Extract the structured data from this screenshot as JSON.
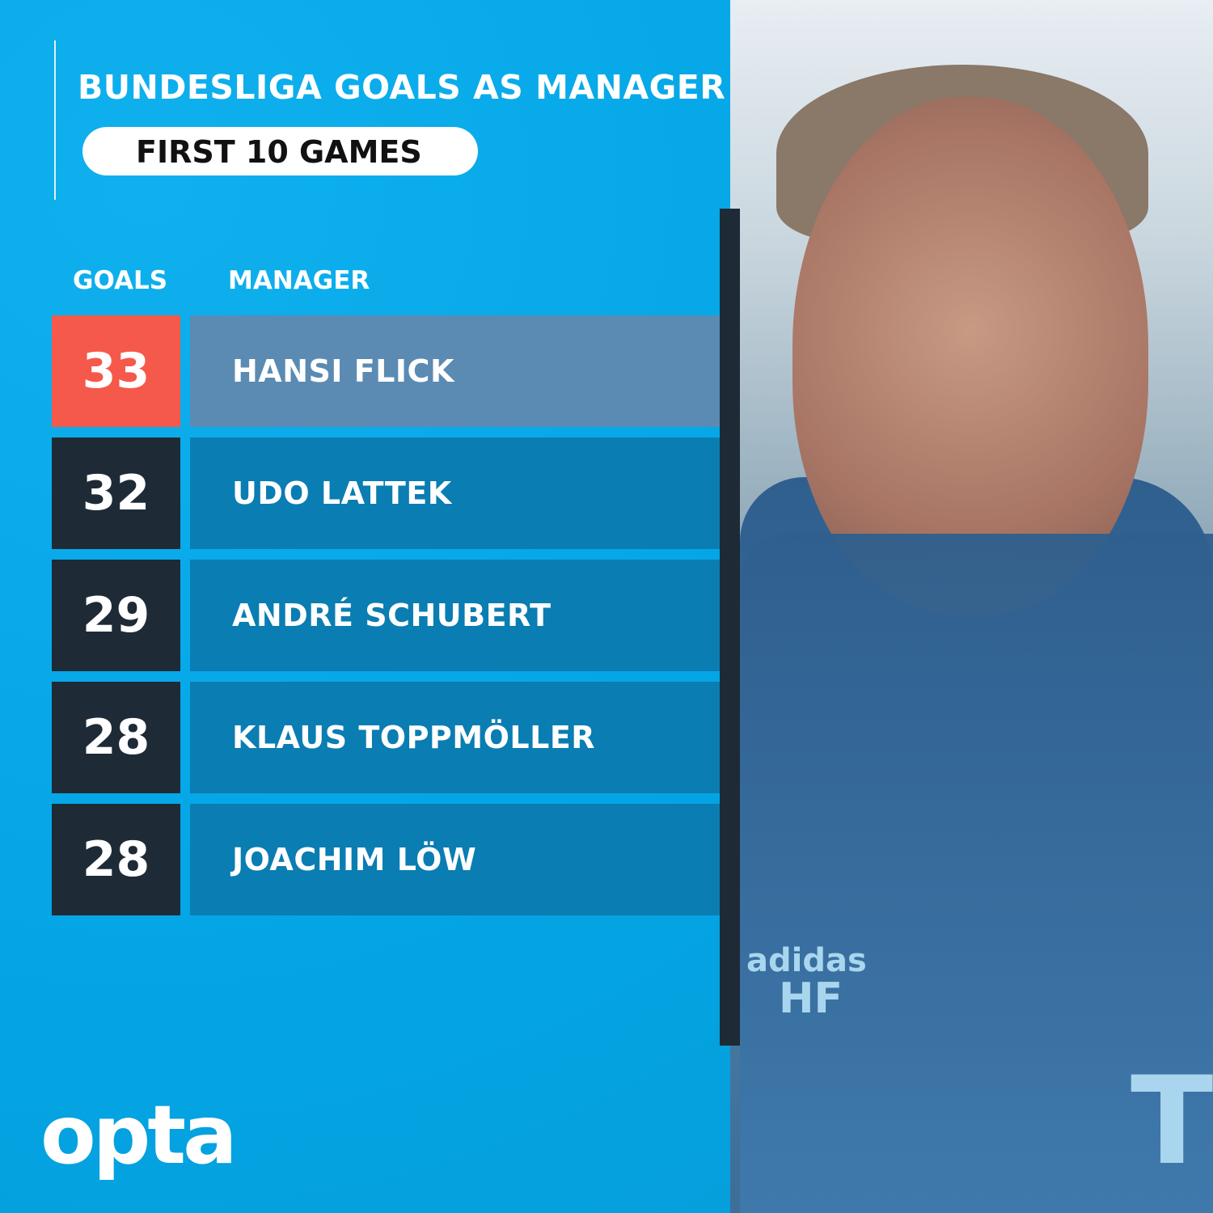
{
  "title": "BUNDESLIGA GOALS AS MANAGER",
  "subtitle": "FIRST 10 GAMES",
  "headers": {
    "goals": "GOALS",
    "manager": "MANAGER"
  },
  "brand": "opta",
  "colors": {
    "background": "#05a9e9",
    "highlight_goals": "#f5594b",
    "highlight_row": "#5b8bb2",
    "goals_box": "#1e2a36",
    "row": "#0a7db2"
  },
  "photo": {
    "jacket_text": [
      "adidas",
      "HF",
      "T"
    ]
  },
  "chart_data": {
    "type": "table",
    "title": "BUNDESLIGA GOALS AS MANAGER",
    "subtitle": "FIRST 10 GAMES",
    "columns": [
      "GOALS",
      "MANAGER"
    ],
    "rows": [
      {
        "goals": "33",
        "manager": "HANSI FLICK"
      },
      {
        "goals": "32",
        "manager": "UDO LATTEK"
      },
      {
        "goals": "29",
        "manager": "ANDRÉ SCHUBERT"
      },
      {
        "goals": "28",
        "manager": "KLAUS TOPPMÖLLER"
      },
      {
        "goals": "28",
        "manager": "JOACHIM LÖW"
      }
    ]
  }
}
